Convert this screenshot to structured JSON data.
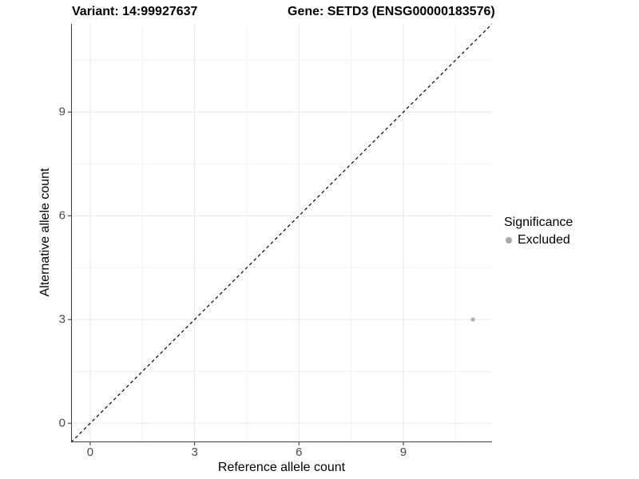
{
  "chart_data": {
    "type": "scatter",
    "title_left": "Variant: 14:99927637",
    "title_right": "Gene: SETD3 (ENSG00000183576)",
    "xlabel": "Reference allele count",
    "ylabel": "Alternative allele count",
    "xlim": [
      -0.55,
      11.55
    ],
    "ylim": [
      -0.55,
      11.55
    ],
    "x_ticks": [
      0,
      3,
      6,
      9
    ],
    "y_ticks": [
      0,
      3,
      6,
      9
    ],
    "grid": {
      "major": true,
      "minor": true,
      "major_color": "#e8e8e8",
      "minor_color": "#f2f2f2"
    },
    "identity_line": {
      "slope": 1,
      "intercept": 0,
      "style": "dashed",
      "color": "#000000"
    },
    "series": [
      {
        "name": "Excluded",
        "color": "#b0b0b0",
        "points": [
          [
            11,
            3
          ]
        ]
      }
    ],
    "legend": {
      "title": "Significance",
      "position": "right",
      "items": [
        {
          "label": "Excluded",
          "color": "#a8a8a8"
        }
      ]
    },
    "axis_color": "#404040",
    "tick_label_color": "#4a4a4a"
  }
}
